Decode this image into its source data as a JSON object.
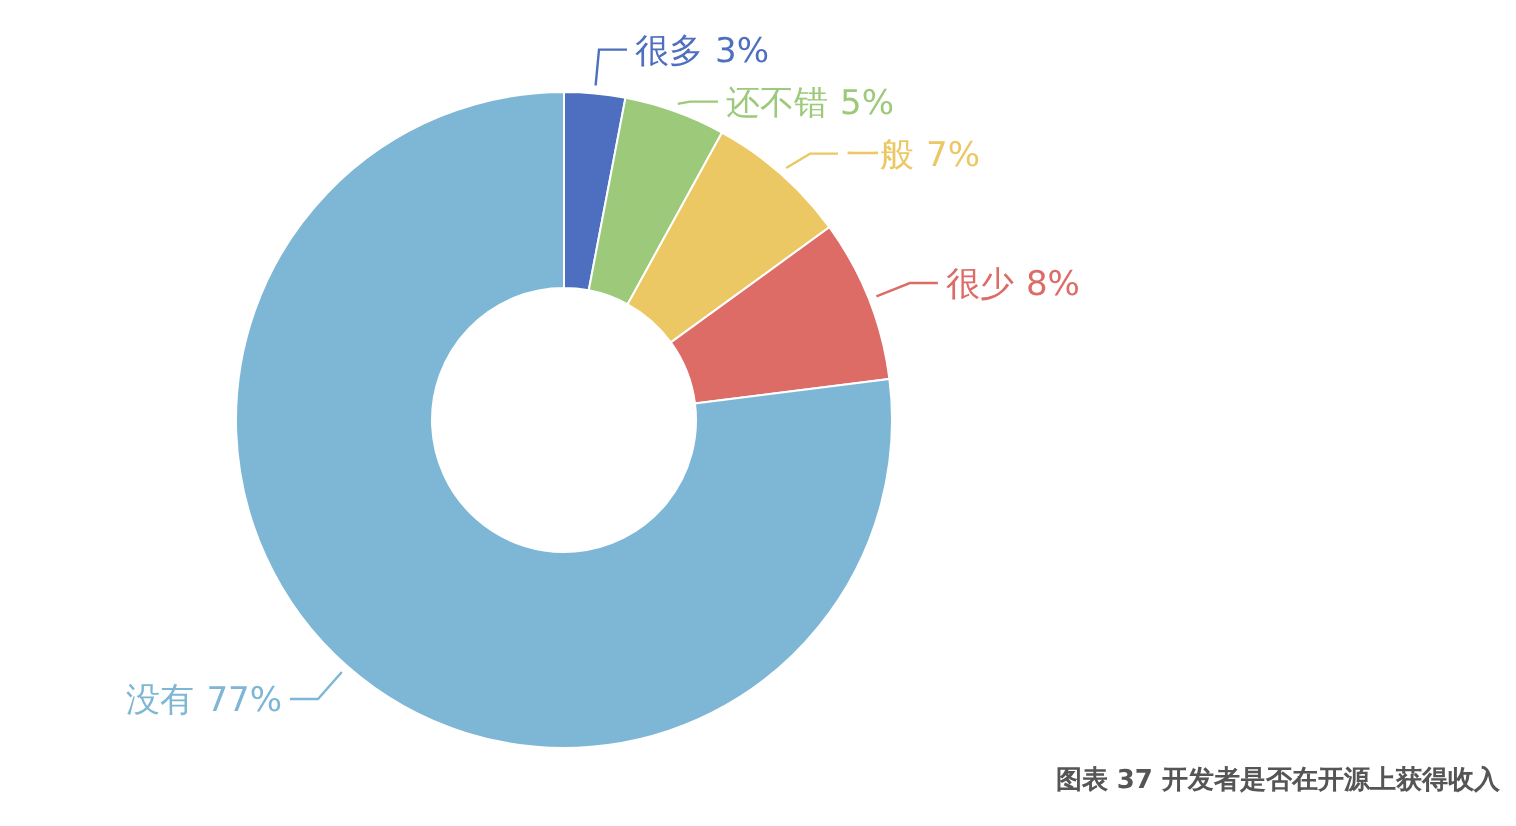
{
  "chart_data": {
    "type": "donut",
    "categories": [
      "很多",
      "还不错",
      "一般",
      "很少",
      "没有"
    ],
    "values": [
      3,
      5,
      7,
      8,
      77
    ],
    "value_labels": [
      "3%",
      "5%",
      "7%",
      "8%",
      "77%"
    ],
    "colors": [
      "#4e6fbf",
      "#9cc97a",
      "#ecc865",
      "#dd6b66",
      "#7eb7d6"
    ],
    "annotations": [
      "图表 37  开发者是否在开源上获得收入"
    ]
  }
}
